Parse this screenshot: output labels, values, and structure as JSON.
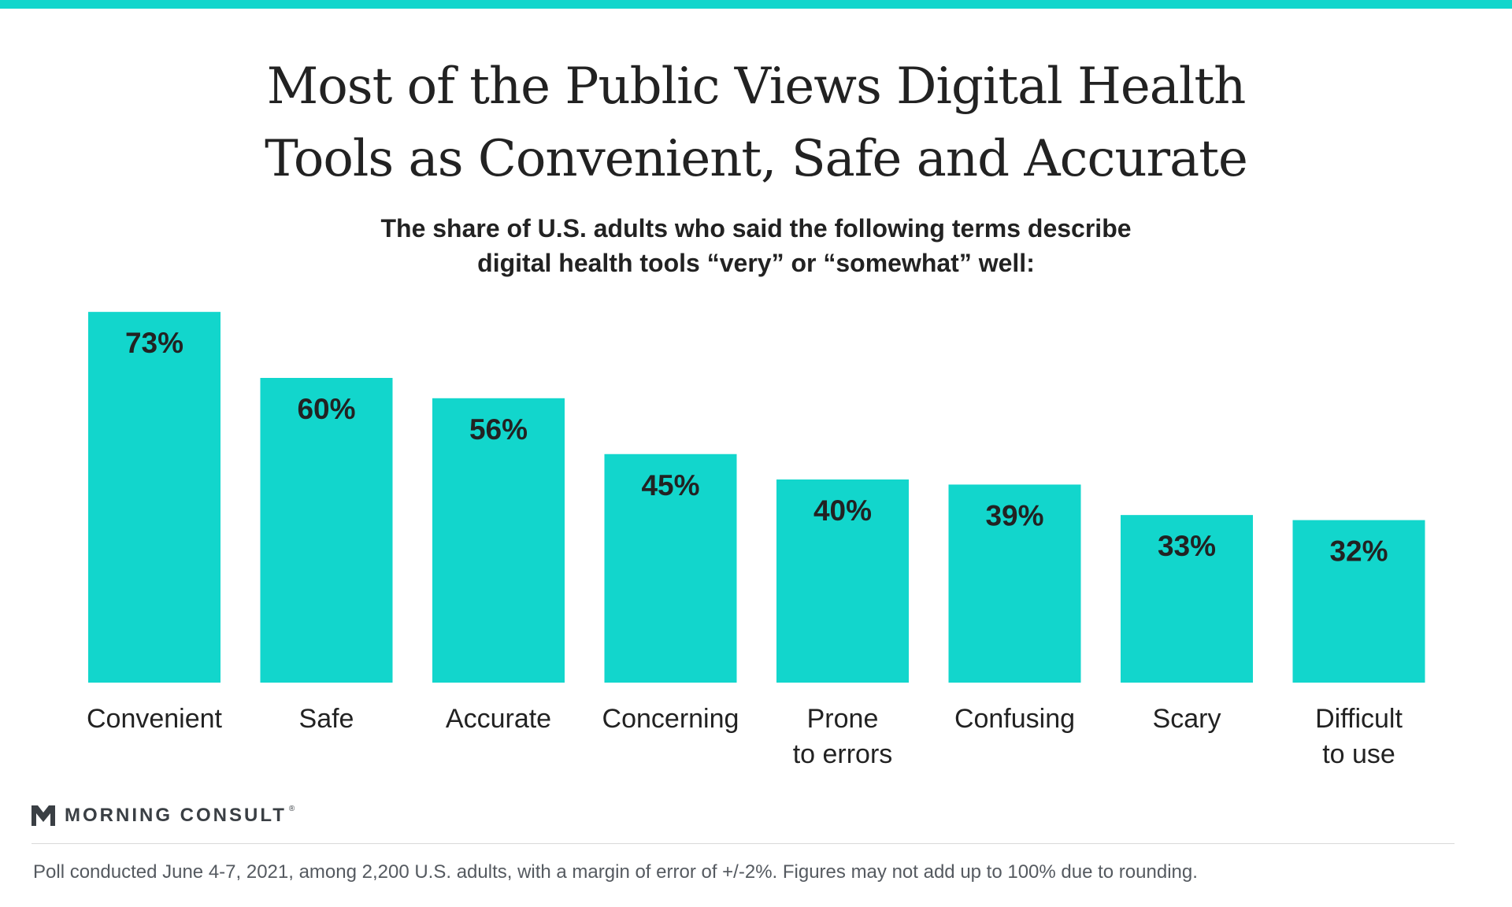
{
  "header": {
    "title_lines": [
      "Most of the Public Views Digital Health",
      "Tools as Convenient, Safe and Accurate"
    ],
    "subtitle_lines": [
      "The share of U.S. adults who said the following terms describe",
      "digital health tools “very” or “somewhat” well:"
    ]
  },
  "chart_data": {
    "type": "bar",
    "title": "Most of the Public Views Digital Health Tools as Convenient, Safe and Accurate",
    "subtitle": "The share of U.S. adults who said the following terms describe digital health tools “very” or “somewhat” well:",
    "categories": [
      [
        "Convenient"
      ],
      [
        "Safe"
      ],
      [
        "Accurate"
      ],
      [
        "Concerning"
      ],
      [
        "Prone",
        "to errors"
      ],
      [
        "Confusing"
      ],
      [
        "Scary"
      ],
      [
        "Difficult",
        "to use"
      ]
    ],
    "values": [
      73,
      60,
      56,
      45,
      40,
      39,
      33,
      32
    ],
    "value_labels": [
      "73%",
      "60%",
      "56%",
      "45%",
      "40%",
      "39%",
      "33%",
      "32%"
    ],
    "ylim": [
      0,
      100
    ],
    "grid": false,
    "bar_color": "#12D6CC"
  },
  "branding": {
    "logo_text": "MORNING CONSULT",
    "logo_reg": "®",
    "accent_color": "#12D6CC"
  },
  "footnote": "Poll conducted June 4-7, 2021, among 2,200 U.S. adults, with a margin of error of +/-2%. Figures may not add up to 100% due to rounding."
}
